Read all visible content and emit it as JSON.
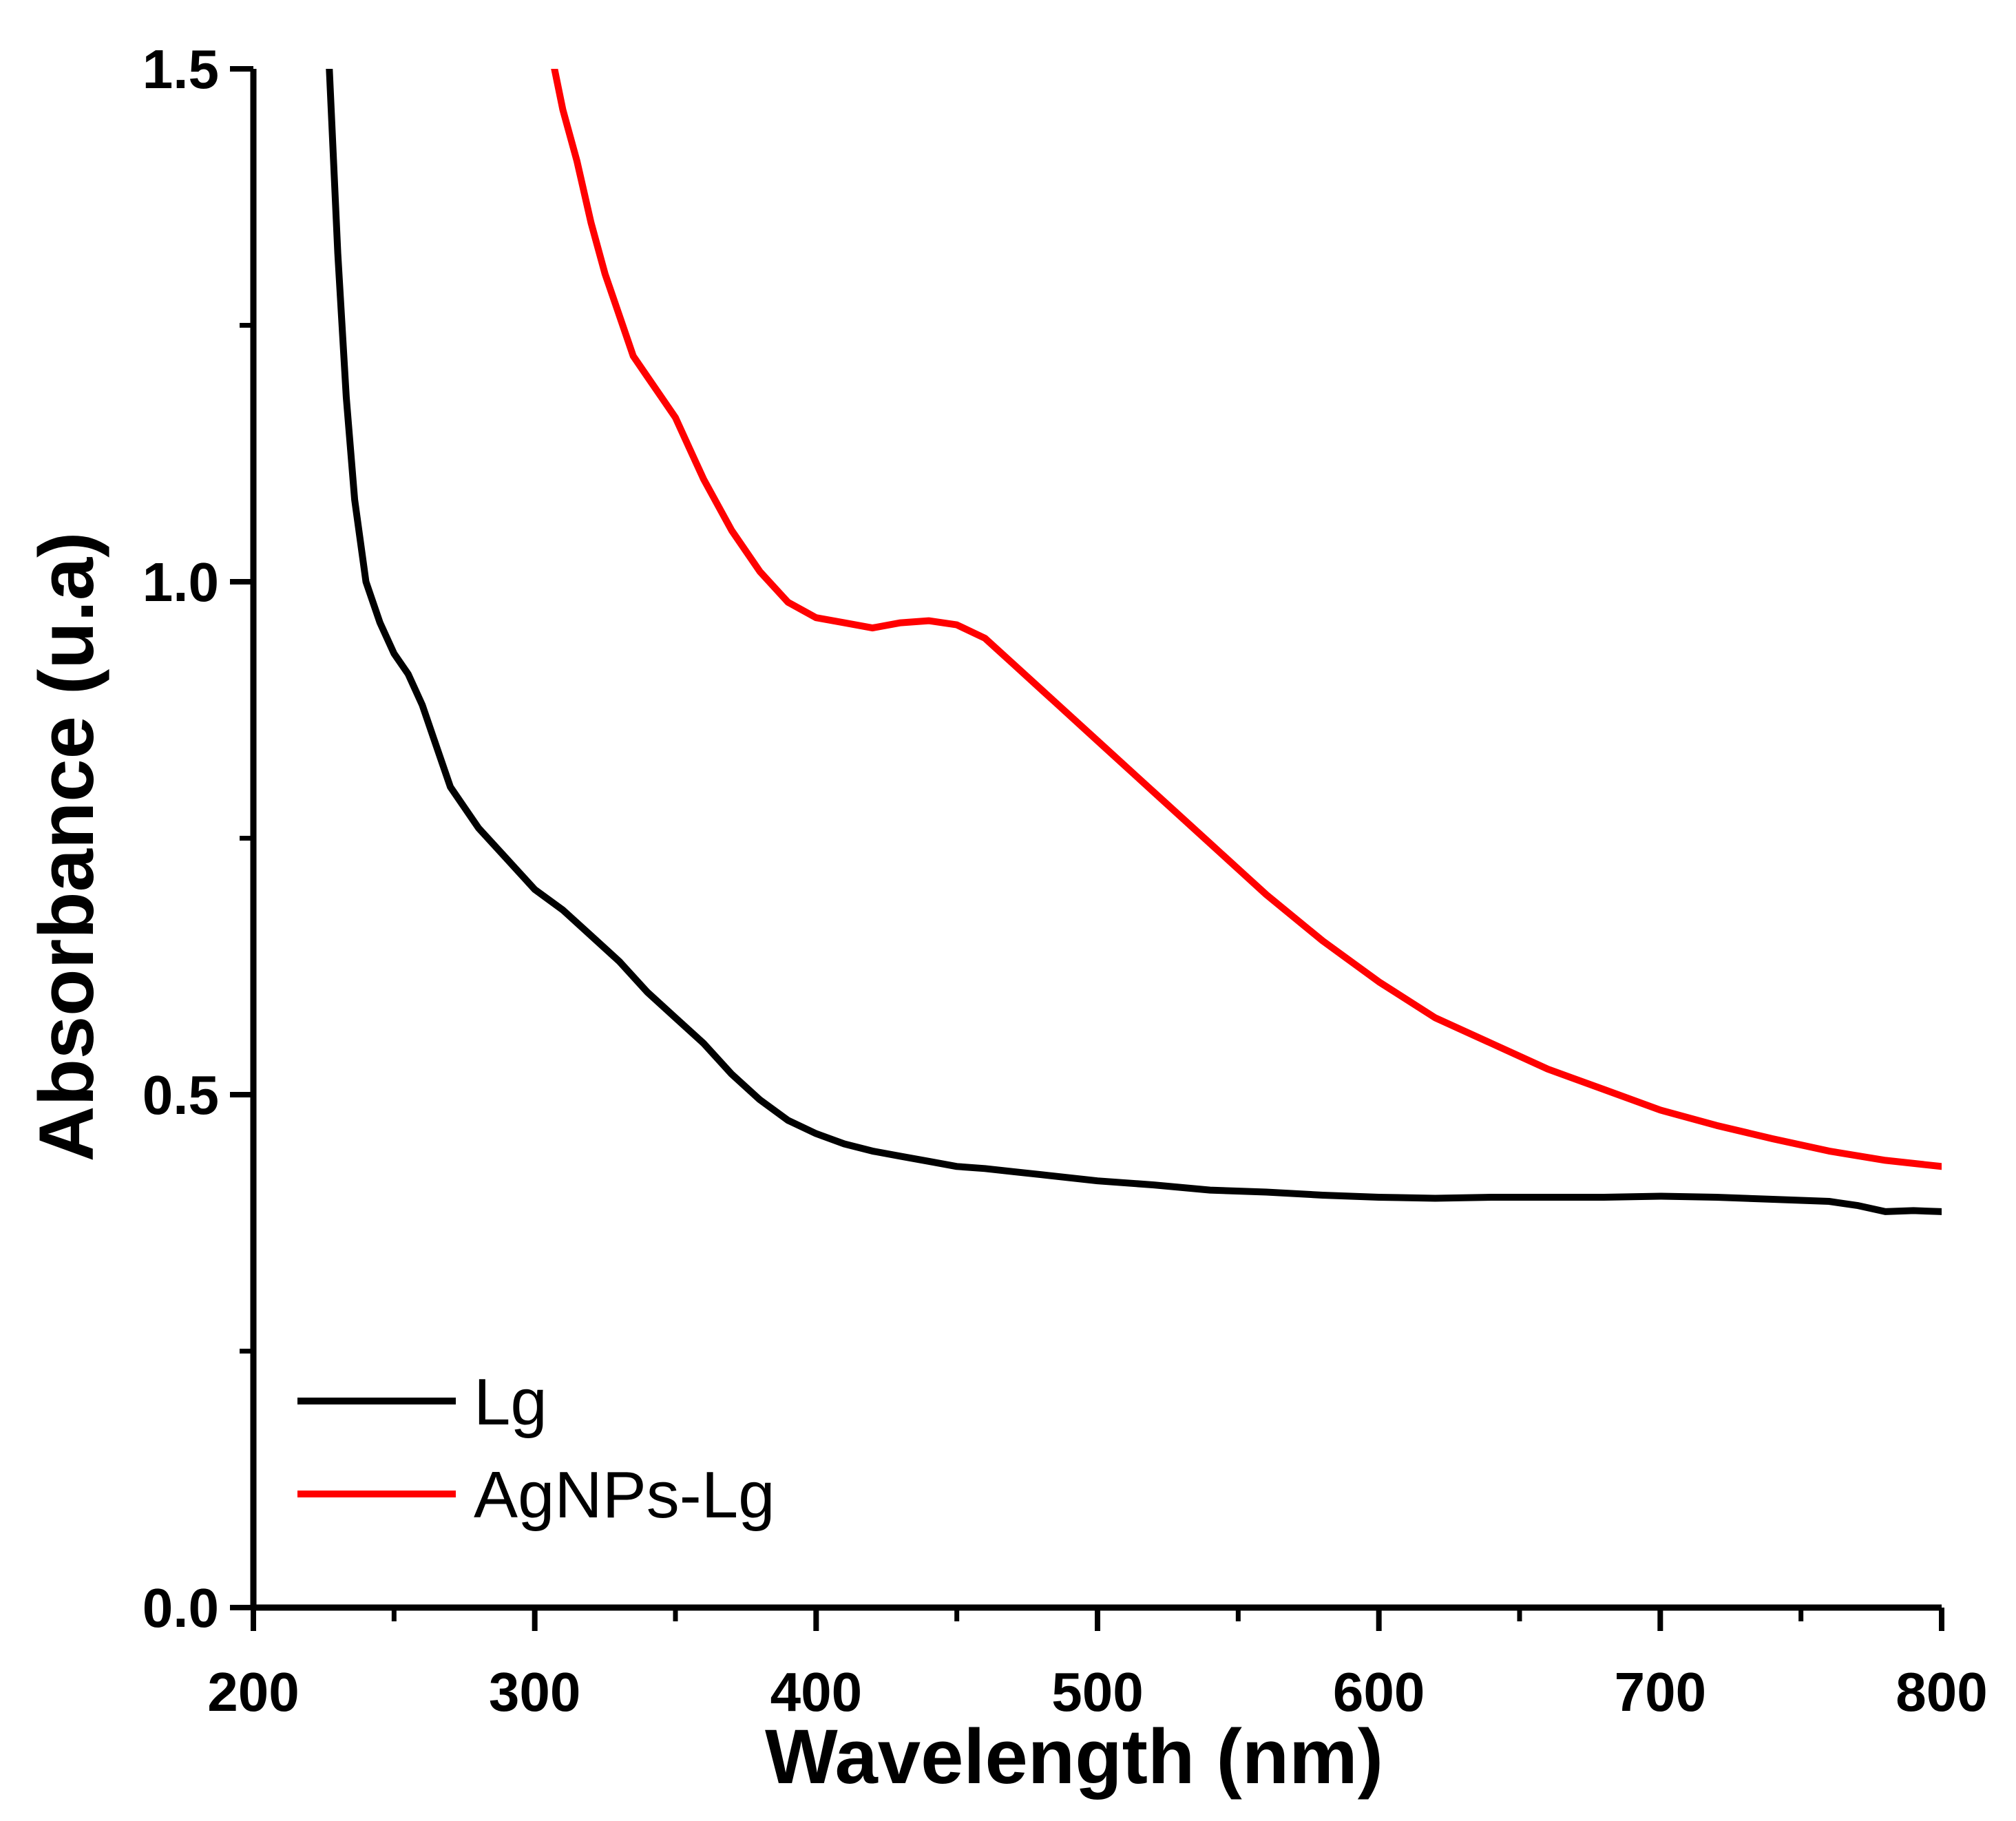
{
  "chart_data": {
    "type": "line",
    "title": "",
    "xlabel": "Wavelength (nm)",
    "ylabel": "Absorbance (u.a)",
    "xlim": [
      200,
      800
    ],
    "ylim": [
      0,
      1.5
    ],
    "grid": false,
    "legend_position": "bottom-left",
    "x_major_ticks": [
      200,
      300,
      400,
      500,
      600,
      700,
      800
    ],
    "x_tick_labels": [
      "200",
      "300",
      "400",
      "500",
      "600",
      "700",
      "800"
    ],
    "x_minor_ticks": [
      250,
      350,
      450,
      550,
      650,
      750
    ],
    "y_major_ticks": [
      0,
      0.5,
      1.0,
      1.5
    ],
    "y_tick_labels": [
      "0.0",
      "0.5",
      "1.0",
      "1.5"
    ],
    "y_minor_ticks": [
      0.25,
      0.75,
      1.25
    ],
    "series": [
      {
        "name": "Lg",
        "color": "#000000",
        "x": [
          227,
          230,
          233,
          236,
          240,
          245,
          250,
          255,
          260,
          265,
          270,
          275,
          280,
          290,
          300,
          310,
          320,
          330,
          340,
          350,
          360,
          370,
          380,
          390,
          400,
          410,
          420,
          430,
          440,
          450,
          460,
          470,
          480,
          500,
          520,
          540,
          560,
          580,
          600,
          620,
          640,
          660,
          680,
          700,
          720,
          740,
          760,
          770,
          780,
          790,
          800
        ],
        "y": [
          1.5,
          1.32,
          1.18,
          1.08,
          1.0,
          0.96,
          0.93,
          0.91,
          0.88,
          0.84,
          0.8,
          0.78,
          0.76,
          0.73,
          0.7,
          0.68,
          0.655,
          0.63,
          0.6,
          0.575,
          0.55,
          0.52,
          0.495,
          0.475,
          0.462,
          0.452,
          0.445,
          0.44,
          0.435,
          0.43,
          0.428,
          0.425,
          0.422,
          0.416,
          0.412,
          0.407,
          0.405,
          0.402,
          0.4,
          0.399,
          0.4,
          0.4,
          0.4,
          0.401,
          0.4,
          0.398,
          0.396,
          0.392,
          0.386,
          0.387,
          0.386
        ]
      },
      {
        "name": "AgNPs-Lg",
        "color": "#ff0000",
        "x": [
          307,
          310,
          315,
          320,
          325,
          330,
          335,
          340,
          345,
          350,
          355,
          360,
          370,
          380,
          390,
          400,
          410,
          420,
          430,
          440,
          450,
          460,
          470,
          480,
          490,
          500,
          520,
          540,
          560,
          580,
          600,
          620,
          640,
          660,
          680,
          700,
          720,
          740,
          760,
          780,
          800
        ],
        "y": [
          1.5,
          1.46,
          1.41,
          1.35,
          1.3,
          1.26,
          1.22,
          1.2,
          1.18,
          1.16,
          1.13,
          1.1,
          1.05,
          1.01,
          0.98,
          0.965,
          0.96,
          0.955,
          0.96,
          0.962,
          0.958,
          0.945,
          0.92,
          0.895,
          0.87,
          0.845,
          0.795,
          0.745,
          0.695,
          0.65,
          0.61,
          0.575,
          0.55,
          0.525,
          0.505,
          0.485,
          0.47,
          0.457,
          0.445,
          0.436,
          0.43
        ]
      }
    ]
  }
}
